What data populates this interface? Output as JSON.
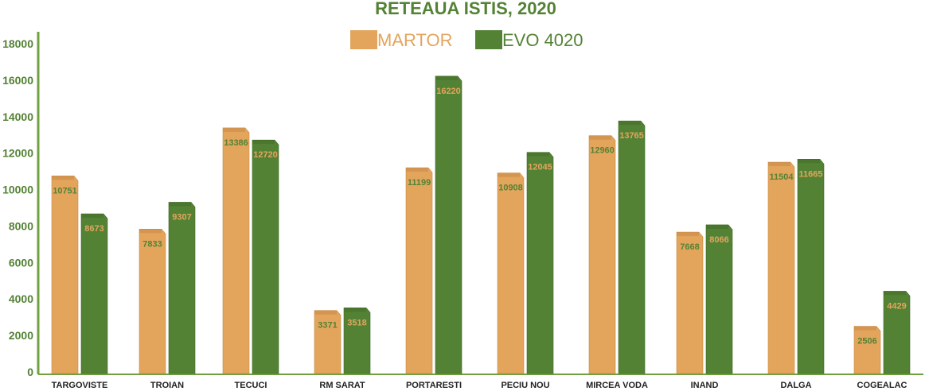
{
  "chart_data": {
    "type": "bar",
    "title": "RETEAUA ISTIS, 2020",
    "xlabel": "",
    "ylabel": "",
    "ylim": [
      0,
      18000
    ],
    "yticks": [
      0,
      2000,
      4000,
      6000,
      8000,
      10000,
      12000,
      14000,
      16000,
      18000
    ],
    "grid": false,
    "legend_position": "top-center",
    "categories": [
      "TARGOVISTE",
      "TROIAN",
      "TECUCI",
      "RM SARAT",
      "PORTARESTI",
      "PECIU NOU",
      "MIRCEA VODA",
      "INAND",
      "DALGA",
      "COGEALAC"
    ],
    "series": [
      {
        "name": "MARTOR",
        "color": "#e3a55c",
        "values": [
          10751,
          7833,
          13386,
          3371,
          11199,
          10908,
          12960,
          7668,
          11504,
          2506
        ]
      },
      {
        "name": "EVO 4020",
        "color": "#548235",
        "values": [
          8673,
          9307,
          12720,
          3518,
          16220,
          12045,
          13765,
          8066,
          11665,
          4429
        ]
      }
    ]
  }
}
